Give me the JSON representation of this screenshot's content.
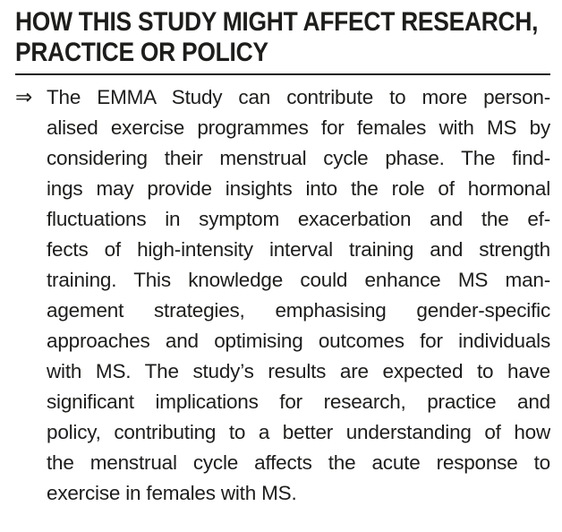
{
  "page": {
    "background_color": "#ffffff",
    "text_color": "#1d1d1b"
  },
  "heading": {
    "line1": "HOW THIS STUDY MIGHT AFFECT RESEARCH,",
    "line2": "PRACTICE OR POLICY"
  },
  "bullet": {
    "marker": "⇒",
    "paragraph": "The EMMA Study can contribute to more personalised exercise programmes for females with MS by considering their menstrual cycle phase. The findings may provide insights into the role of hormonal fluctuations in symptom exacerbation and the effects of high-intensity interval training and strength training. This knowledge could enhance MS management strategies, emphasising gender-specific approaches and optimising outcomes for individuals with MS. The study’s results are expected to have significant implications for research, practice and policy, contributing to a better understanding of how the menstrual cycle affects the acute response to exercise in females with MS.",
    "lines": [
      "The EMMA Study can contribute to more person-",
      "alised exercise programmes for females with MS by",
      "considering their menstrual cycle phase. The find-",
      "ings may provide insights into the role of hormonal",
      "fluctuations in symptom exacerbation and the ef-",
      "fects of high-intensity interval training and strength",
      "training. This knowledge could enhance MS man-",
      "agement strategies, emphasising gender-specific",
      "approaches and optimising outcomes for individuals",
      "with MS. The study’s results are expected to have",
      "significant implications for research, practice and",
      "policy, contributing to a better understanding of how",
      "the menstrual cycle affects the acute response to",
      "exercise in females with MS."
    ]
  }
}
